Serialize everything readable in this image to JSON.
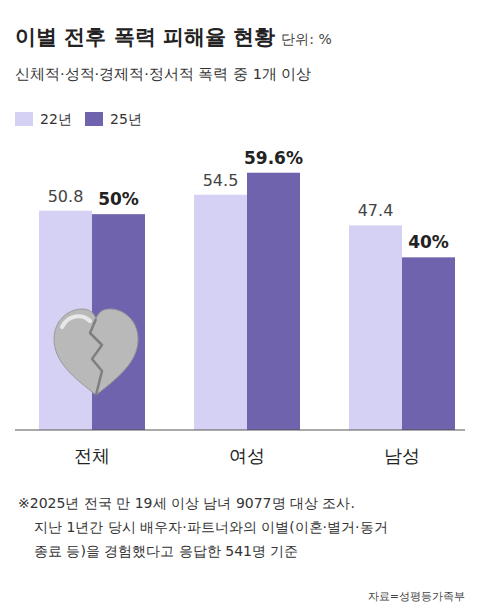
{
  "chart_data": {
    "type": "bar",
    "title": "이별 전후 폭력 피해율 현황",
    "unit": "단위: %",
    "subtitle": "신체적·성적·경제적·정서적 폭력 중 1개 이상",
    "categories": [
      "전체",
      "여성",
      "남성"
    ],
    "series": [
      {
        "name": "22년",
        "color": "#d5d1f4",
        "values": [
          50.8,
          54.5,
          47.4
        ]
      },
      {
        "name": "25년",
        "color": "#6f63ad",
        "values": [
          50,
          59.6,
          40
        ],
        "value_labels": [
          "50%",
          "59.6%",
          "40%"
        ]
      }
    ],
    "ylim": [
      0,
      60
    ],
    "data_labels": true,
    "tick_labels": "x",
    "grid": false,
    "legend": "top-left",
    "annotations": [
      "※2025년 전국 만 19세 이상 남녀 9077명 대상 조사.",
      "지난 1년간 당시 배우자·파트너와의 이별(이혼·별거·동거",
      "종료 등)을 경험했다고 응답한 541명 기준"
    ],
    "source": "자료=성평등가족부"
  }
}
